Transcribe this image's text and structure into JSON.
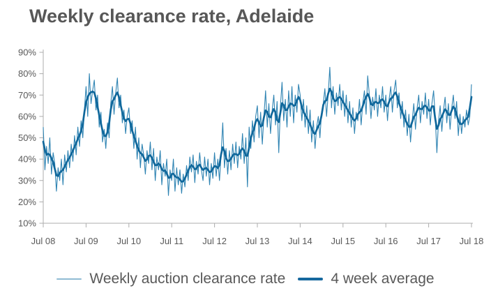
{
  "title": "Weekly clearance rate, Adelaide",
  "colors": {
    "text": "#595959",
    "axis": "#ACACAC",
    "background": "#FFFFFF",
    "weekly_line": "#2E83B2",
    "average_line": "#0F679B",
    "legend_weekly_sample": "#8FBBD3",
    "legend_average_sample": "#16689E"
  },
  "chart_data": {
    "type": "line",
    "title": "Weekly clearance rate, Adelaide",
    "grid": "off",
    "y_min": 10,
    "y_max": 90,
    "y_unit": "%",
    "y_ticks": [
      {
        "v": 90,
        "label": "90%"
      },
      {
        "v": 80,
        "label": "80%"
      },
      {
        "v": 70,
        "label": "70%"
      },
      {
        "v": 60,
        "label": "60%"
      },
      {
        "v": 50,
        "label": "50%"
      },
      {
        "v": 40,
        "label": "40%"
      },
      {
        "v": 30,
        "label": "30%"
      },
      {
        "v": 20,
        "label": "20%"
      },
      {
        "v": 10,
        "label": "10%"
      }
    ],
    "x_ticks": [
      {
        "pos": 0,
        "label": "Jul 08"
      },
      {
        "pos": 1,
        "label": "Jul 09"
      },
      {
        "pos": 2,
        "label": "Jul 10"
      },
      {
        "pos": 3,
        "label": "Jul 11"
      },
      {
        "pos": 4,
        "label": "Jul 12"
      },
      {
        "pos": 5,
        "label": "Jul 13"
      },
      {
        "pos": 6,
        "label": "Jul 14"
      },
      {
        "pos": 7,
        "label": "Jul 15"
      },
      {
        "pos": 8,
        "label": "Jul 16"
      },
      {
        "pos": 9,
        "label": "Jul 17"
      },
      {
        "pos": 10,
        "label": "Jul 18"
      }
    ],
    "x_range_years": [
      0,
      10
    ],
    "series": [
      {
        "name": "Weekly auction clearance rate",
        "color": "#2E83B2",
        "width": 1.1,
        "values": [
          55,
          35,
          46,
          38,
          50,
          33,
          43,
          38,
          25,
          36,
          30,
          40,
          28,
          42,
          34,
          44,
          36,
          47,
          39,
          51,
          42,
          55,
          46,
          58,
          50,
          63,
          74,
          60,
          80,
          66,
          72,
          77,
          63,
          70,
          55,
          62,
          48,
          54,
          45,
          57,
          50,
          66,
          74,
          61,
          71,
          78,
          64,
          70,
          57,
          63,
          52,
          60,
          64,
          52,
          58,
          45,
          55,
          40,
          50,
          36,
          47,
          42,
          33,
          44,
          38,
          48,
          35,
          45,
          30,
          41,
          35,
          44,
          28,
          38,
          32,
          40,
          23,
          35,
          30,
          40,
          25,
          36,
          28,
          35,
          24,
          33,
          27,
          37,
          30,
          41,
          34,
          42,
          29,
          39,
          33,
          43,
          35,
          30,
          41,
          32,
          40,
          28,
          38,
          31,
          43,
          32,
          40,
          30,
          42,
          57,
          36,
          45,
          33,
          44,
          35,
          47,
          38,
          48,
          36,
          46,
          40,
          52,
          38,
          50,
          27,
          55,
          45,
          58,
          48,
          60,
          65,
          50,
          62,
          47,
          60,
          72,
          55,
          66,
          52,
          63,
          70,
          56,
          67,
          43,
          65,
          76,
          58,
          68,
          55,
          72,
          60,
          74,
          57,
          70,
          62,
          75,
          70,
          58,
          68,
          55,
          65,
          52,
          63,
          48,
          58,
          45,
          55,
          60,
          50,
          62,
          66,
          73,
          60,
          70,
          83,
          64,
          74,
          61,
          71,
          65,
          75,
          63,
          72,
          60,
          70,
          57,
          67,
          55,
          64,
          52,
          62,
          58,
          68,
          56,
          66,
          72,
          61,
          79,
          70,
          59,
          69,
          63,
          73,
          60,
          70,
          64,
          74,
          62,
          70,
          58,
          68,
          74,
          62,
          72,
          77,
          64,
          71,
          59,
          67,
          55,
          63,
          51,
          61,
          48,
          58,
          66,
          54,
          64,
          70,
          57,
          67,
          61,
          71,
          59,
          68,
          56,
          66,
          72,
          60,
          43,
          58,
          65,
          53,
          63,
          69,
          57,
          66,
          54,
          64,
          70,
          59,
          67,
          51,
          61,
          52,
          60,
          55,
          63,
          56,
          60,
          75
        ]
      },
      {
        "name": "4 week average",
        "color": "#0F679B",
        "width": 2.7,
        "derived": "4-week moving average of the weekly series"
      }
    ],
    "legend": {
      "position": "bottom",
      "items": [
        {
          "label": "Weekly auction clearance rate",
          "sample_color": "#8FBBD3"
        },
        {
          "label": "4 week average",
          "sample_color": "#16689E"
        }
      ]
    }
  }
}
